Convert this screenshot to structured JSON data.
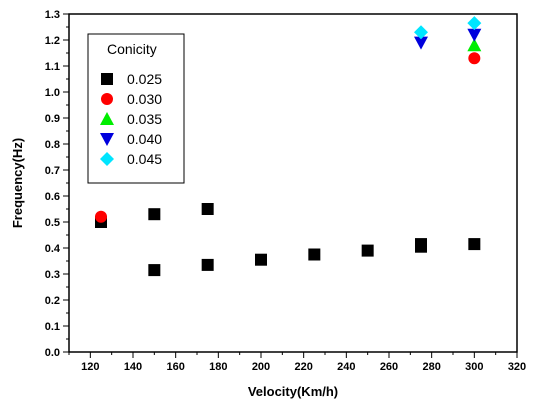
{
  "chart_data": {
    "type": "scatter",
    "title": "",
    "xlabel": "Velocity(Km/h)",
    "ylabel": "Frequency(Hz)",
    "xlim": [
      110,
      320
    ],
    "ylim": [
      0.0,
      1.3
    ],
    "xticks": [
      120,
      140,
      160,
      180,
      200,
      220,
      240,
      260,
      280,
      300,
      320
    ],
    "yticks": [
      0.0,
      0.1,
      0.2,
      0.3,
      0.4,
      0.5,
      0.6,
      0.7,
      0.8,
      0.9,
      1.0,
      1.1,
      1.2,
      1.3
    ],
    "x_tick_labels": [
      "120",
      "140",
      "160",
      "180",
      "200",
      "220",
      "240",
      "260",
      "280",
      "300",
      "320"
    ],
    "y_tick_labels": [
      "0.0",
      "0.1",
      "0.2",
      "0.3",
      "0.4",
      "0.5",
      "0.6",
      "0.7",
      "0.8",
      "0.9",
      "1.0",
      "1.1",
      "1.2",
      "1.3"
    ],
    "grid": false,
    "legend": {
      "title": "Conicity",
      "placement": "top-left"
    },
    "series": [
      {
        "name": "0.025",
        "marker": "square",
        "color": "#000000",
        "points": [
          [
            125,
            0.5
          ],
          [
            150,
            0.53
          ],
          [
            150,
            0.315
          ],
          [
            175,
            0.55
          ],
          [
            175,
            0.335
          ],
          [
            200,
            0.355
          ],
          [
            225,
            0.375
          ],
          [
            250,
            0.39
          ],
          [
            275,
            0.405
          ],
          [
            275,
            0.415
          ],
          [
            300,
            0.415
          ]
        ]
      },
      {
        "name": "0.030",
        "marker": "circle",
        "color": "#ff0000",
        "points": [
          [
            125,
            0.52
          ],
          [
            300,
            1.13
          ]
        ]
      },
      {
        "name": "0.035",
        "marker": "triangle-up",
        "color": "#00ee00",
        "points": [
          [
            300,
            1.18
          ]
        ]
      },
      {
        "name": "0.040",
        "marker": "triangle-down",
        "color": "#0000dd",
        "points": [
          [
            275,
            1.19
          ],
          [
            300,
            1.22
          ]
        ]
      },
      {
        "name": "0.045",
        "marker": "diamond",
        "color": "#00e5ff",
        "points": [
          [
            275,
            1.23
          ],
          [
            300,
            1.265
          ]
        ]
      }
    ]
  }
}
